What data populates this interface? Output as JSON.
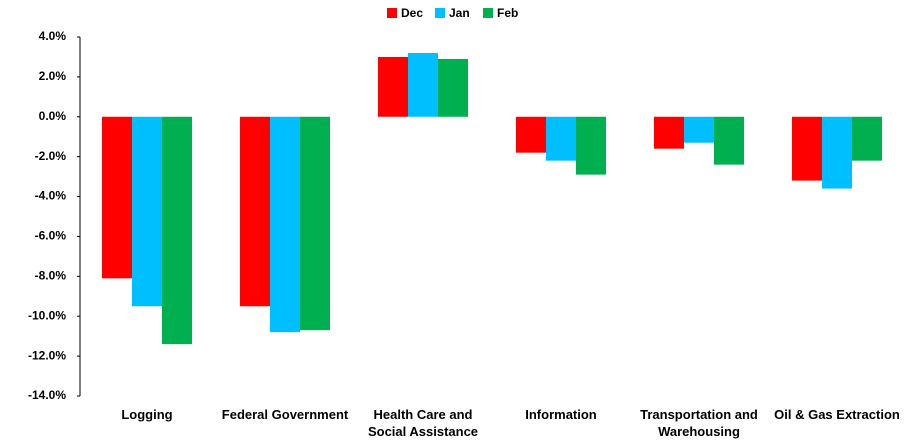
{
  "chart_data": {
    "type": "bar",
    "categories": [
      "Logging",
      "Federal Government",
      "Health Care and\nSocial Assistance",
      "Information",
      "Transportation and\nWarehousing",
      "Oil & Gas Extraction"
    ],
    "series": [
      {
        "name": "Dec",
        "color": "#ff0000",
        "values": [
          -8.1,
          -9.5,
          3.0,
          -1.8,
          -1.6,
          -3.2
        ]
      },
      {
        "name": "Jan",
        "color": "#00bfff",
        "values": [
          -9.5,
          -10.8,
          3.2,
          -2.2,
          -1.3,
          -3.6
        ]
      },
      {
        "name": "Feb",
        "color": "#00b050",
        "values": [
          -11.4,
          -10.7,
          2.9,
          -2.9,
          -2.4,
          -2.2
        ]
      }
    ],
    "ylim": [
      -14,
      4
    ],
    "yticks": [
      {
        "value": 4,
        "label": "4.0%"
      },
      {
        "value": 2,
        "label": "2.0%"
      },
      {
        "value": 0,
        "label": "0.0%"
      },
      {
        "value": -2,
        "label": "-2.0%"
      },
      {
        "value": -4,
        "label": "-4.0%"
      },
      {
        "value": -6,
        "label": "-6.0%"
      },
      {
        "value": -8,
        "label": "-8.0%"
      },
      {
        "value": -10,
        "label": "-10.0%"
      },
      {
        "value": -12,
        "label": "-12.0%"
      },
      {
        "value": -14,
        "label": "-14.0%"
      }
    ],
    "legend": "top"
  }
}
